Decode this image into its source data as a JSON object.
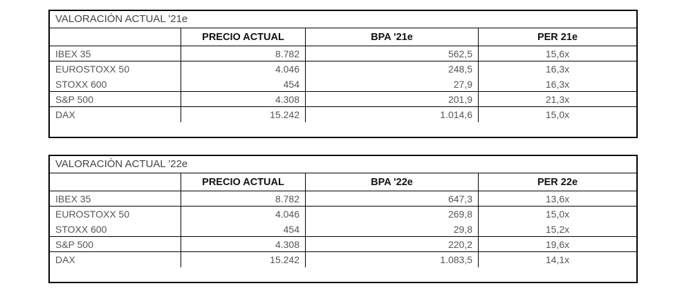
{
  "tables": [
    {
      "title": "VALORACIÓN ACTUAL '21e",
      "headers": [
        "",
        "PRECIO ACTUAL",
        "BPA '21e",
        "PER 21e"
      ],
      "rows": [
        {
          "index": "IBEX 35",
          "precio": "8.782",
          "bpa": "562,5",
          "per": "15,6x"
        },
        {
          "index": "EUROSTOXX 50",
          "precio": "4.046",
          "bpa": "248,5",
          "per": "16,3x"
        },
        {
          "index": "STOXX 600",
          "precio": "454",
          "bpa": "27,9",
          "per": "16,3x"
        },
        {
          "index": "S&P 500",
          "precio": "4.308",
          "bpa": "201,9",
          "per": "21,3x"
        },
        {
          "index": "DAX",
          "precio": "15.242",
          "bpa": "1.014,6",
          "per": "15,0x"
        }
      ]
    },
    {
      "title": "VALORACIÓN ACTUAL '22e",
      "headers": [
        "",
        "PRECIO ACTUAL",
        "BPA '22e",
        "PER 22e"
      ],
      "rows": [
        {
          "index": "IBEX 35",
          "precio": "8.782",
          "bpa": "647,3",
          "per": "13,6x"
        },
        {
          "index": "EUROSTOXX 50",
          "precio": "4.046",
          "bpa": "269,8",
          "per": "15,0x"
        },
        {
          "index": "STOXX 600",
          "precio": "454",
          "bpa": "29,8",
          "per": "15,2x"
        },
        {
          "index": "S&P 500",
          "precio": "4.308",
          "bpa": "220,2",
          "per": "19,6x"
        },
        {
          "index": "DAX",
          "precio": "15.242",
          "bpa": "1.083,5",
          "per": "14,1x"
        }
      ]
    }
  ]
}
